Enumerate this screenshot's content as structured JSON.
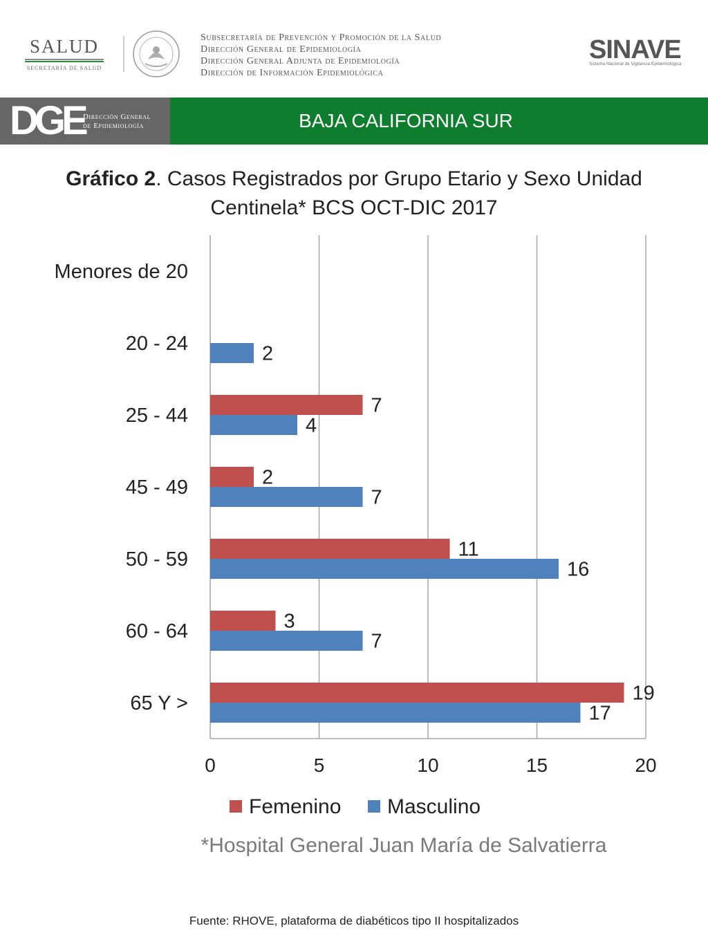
{
  "header": {
    "salud_word": "SALUD",
    "salud_sub": "SECRETARÍA DE SALUD",
    "agency_lines": [
      "Subsecretaría de Prevención y Promoción de la Salud",
      "Dirección General de Epidemiología",
      "Dirección General Adjunta de Epidemiología",
      "Dirección de Información Epidemiológica"
    ],
    "sinave_logo": "SINAVE",
    "sinave_tag": "Sistema Nacional de Vigilancia Epidemiológica"
  },
  "band": {
    "dge_mark": "DGE",
    "dge_text_line1": "Dirección General",
    "dge_text_line2": "de Epidemiología",
    "region": "BAJA CALIFORNIA SUR"
  },
  "title": {
    "prefix": "Gráfico 2",
    "text": ". Casos Registrados por Grupo Etario y Sexo Unidad Centinela* BCS OCT-DIC 2017"
  },
  "chart_data": {
    "type": "bar",
    "orientation": "horizontal",
    "categories": [
      "Menores de 20",
      "20 - 24",
      "25 - 44",
      "45 - 49",
      "50 - 59",
      "60 - 64",
      "65 Y >"
    ],
    "series": [
      {
        "name": "Femenino",
        "color": "#c0504d",
        "values": [
          null,
          null,
          7,
          2,
          11,
          3,
          19
        ]
      },
      {
        "name": "Masculino",
        "color": "#4f81bd",
        "values": [
          null,
          2,
          4,
          7,
          16,
          7,
          17
        ]
      }
    ],
    "xlim": [
      0,
      20
    ],
    "xticks": [
      0,
      5,
      10,
      15,
      20
    ],
    "grid": "vertical",
    "legend": "bottom"
  },
  "footer": {
    "note": "*Hospital General Juan María de Salvatierra",
    "source": "Fuente: RHOVE, plataforma de diabéticos tipo II hospitalizados"
  }
}
